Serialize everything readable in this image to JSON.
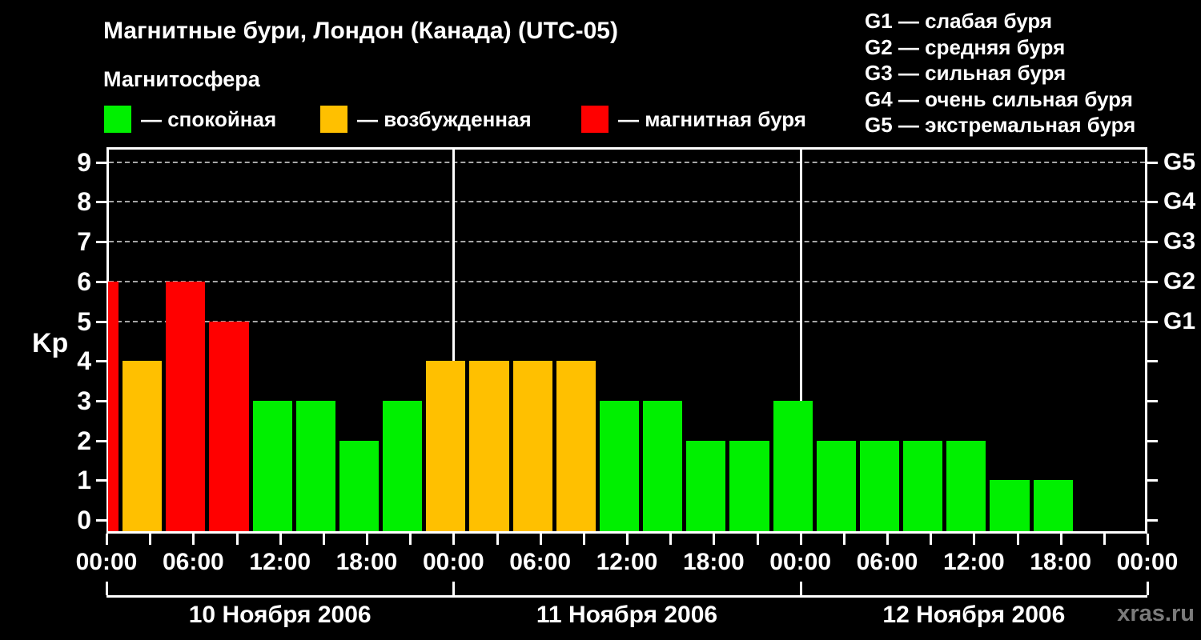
{
  "header": {
    "title": "Магнитные бури, Лондон (Канада) (UTC-05)",
    "subtitle": "Магнитосфера"
  },
  "legend": {
    "items": [
      {
        "state": "quiet",
        "label": "— спокойная",
        "color": "#00f000"
      },
      {
        "state": "excited",
        "label": "— возбужденная",
        "color": "#ffc000"
      },
      {
        "state": "storm",
        "label": "— магнитная буря",
        "color": "#ff0000"
      }
    ]
  },
  "g_legend": {
    "lines": [
      "G1 — слабая буря",
      "G2 — средняя буря",
      "G3 — сильная буря",
      "G4 — очень сильная буря",
      "G5 — экстремальная буря"
    ]
  },
  "watermark": "xras.ru",
  "chart_data": {
    "type": "bar",
    "title": "Магнитные бури, Лондон (Канада) (UTC-05)",
    "ylabel": "Kp",
    "ylim": [
      0,
      9
    ],
    "grid": "dashed horizontal at Kp 5-9 only",
    "legend_position": "top",
    "kp_tick_labels": [
      "0",
      "1",
      "2",
      "3",
      "4",
      "5",
      "6",
      "7",
      "8",
      "9"
    ],
    "grid_kp_levels": [
      5,
      6,
      7,
      8,
      9
    ],
    "g_axis_labels": [
      "G1",
      "G2",
      "G3",
      "G4",
      "G5"
    ],
    "g_axis_kp_levels": [
      5,
      6,
      7,
      8,
      9
    ],
    "hours_total": 72,
    "tick_every_hours": 3,
    "label_every_hours": 6,
    "time_labels": [
      "00:00",
      "06:00",
      "12:00",
      "18:00",
      "00:00",
      "06:00",
      "12:00",
      "18:00",
      "00:00",
      "06:00",
      "12:00",
      "18:00",
      "00:00"
    ],
    "days": [
      "10 Ноября 2006",
      "11 Ноября 2006",
      "12 Ноября 2006"
    ],
    "day_boundaries_h": [
      0,
      24,
      48,
      72
    ],
    "colors": {
      "quiet": "#00f000",
      "excited": "#ffc000",
      "storm": "#ff0000"
    },
    "bars": [
      {
        "start_h": 0,
        "end_h": 1,
        "kp": 6,
        "state": "storm"
      },
      {
        "start_h": 1,
        "end_h": 4,
        "kp": 4,
        "state": "excited"
      },
      {
        "start_h": 4,
        "end_h": 7,
        "kp": 6,
        "state": "storm"
      },
      {
        "start_h": 7,
        "end_h": 10,
        "kp": 5,
        "state": "storm"
      },
      {
        "start_h": 10,
        "end_h": 13,
        "kp": 3,
        "state": "quiet"
      },
      {
        "start_h": 13,
        "end_h": 16,
        "kp": 3,
        "state": "quiet"
      },
      {
        "start_h": 16,
        "end_h": 19,
        "kp": 2,
        "state": "quiet"
      },
      {
        "start_h": 19,
        "end_h": 22,
        "kp": 3,
        "state": "quiet"
      },
      {
        "start_h": 22,
        "end_h": 25,
        "kp": 4,
        "state": "excited"
      },
      {
        "start_h": 25,
        "end_h": 28,
        "kp": 4,
        "state": "excited"
      },
      {
        "start_h": 28,
        "end_h": 31,
        "kp": 4,
        "state": "excited"
      },
      {
        "start_h": 31,
        "end_h": 34,
        "kp": 4,
        "state": "excited"
      },
      {
        "start_h": 34,
        "end_h": 37,
        "kp": 3,
        "state": "quiet"
      },
      {
        "start_h": 37,
        "end_h": 40,
        "kp": 3,
        "state": "quiet"
      },
      {
        "start_h": 40,
        "end_h": 43,
        "kp": 2,
        "state": "quiet"
      },
      {
        "start_h": 43,
        "end_h": 46,
        "kp": 2,
        "state": "quiet"
      },
      {
        "start_h": 46,
        "end_h": 49,
        "kp": 3,
        "state": "quiet"
      },
      {
        "start_h": 49,
        "end_h": 52,
        "kp": 2,
        "state": "quiet"
      },
      {
        "start_h": 52,
        "end_h": 55,
        "kp": 2,
        "state": "quiet"
      },
      {
        "start_h": 55,
        "end_h": 58,
        "kp": 2,
        "state": "quiet"
      },
      {
        "start_h": 58,
        "end_h": 61,
        "kp": 2,
        "state": "quiet"
      },
      {
        "start_h": 61,
        "end_h": 64,
        "kp": 1,
        "state": "quiet"
      },
      {
        "start_h": 64,
        "end_h": 67,
        "kp": 1,
        "state": "quiet"
      }
    ]
  }
}
